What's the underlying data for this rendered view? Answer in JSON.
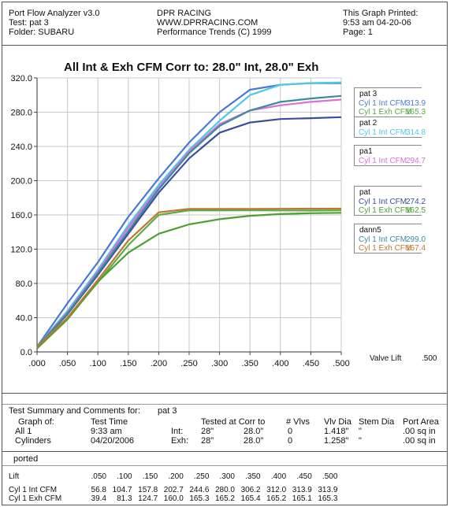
{
  "header": {
    "left": [
      "Port Flow Analyzer v3.0",
      "Test:  pat  3",
      "Folder:  SUBARU"
    ],
    "middle": [
      "DPR RACING",
      "WWW.DPRRACING.COM",
      "Performance Trends (C) 1999"
    ],
    "right": [
      "This Graph Printed:",
      "9:53 am 04-20-06",
      "Page: 1"
    ]
  },
  "chart_data": {
    "type": "line",
    "title": "All Int & Exh CFM    Corr to: 28.0\" Int, 28.0\" Exh",
    "xlabel": "Valve Lift",
    "ylabel": "",
    "xlim": [
      0,
      0.5
    ],
    "ylim": [
      0,
      320
    ],
    "grid": true,
    "x_tick_labels": [
      ".000",
      ".050",
      ".100",
      ".150",
      ".200",
      ".250",
      ".300",
      ".350",
      ".400",
      ".450",
      ".500"
    ],
    "y_tick_labels": [
      "0.0",
      "40.0",
      "80.0",
      "120.0",
      "160.0",
      "200.0",
      "240.0",
      "280.0",
      "320.0"
    ],
    "y_ticks": [
      0,
      40,
      80,
      120,
      160,
      200,
      240,
      280,
      320
    ],
    "x": [
      0.0,
      0.05,
      0.1,
      0.15,
      0.2,
      0.25,
      0.3,
      0.35,
      0.4,
      0.45,
      0.5
    ],
    "x_end_value": ".500",
    "series": [
      {
        "group": "pat  3",
        "name": "Cyl 1 Int CFM",
        "color": "#4a78d8",
        "end_value": "313.9",
        "values": [
          6,
          56.8,
          104.7,
          157.8,
          202.7,
          244.6,
          280.0,
          306.2,
          312.0,
          313.9,
          313.9
        ]
      },
      {
        "group": "pat  3",
        "name": "Cyl 1 Exh CFM",
        "color": "#5aaa46",
        "end_value": "165.3",
        "values": [
          5,
          39.4,
          81.3,
          124.7,
          160.0,
          165.3,
          165.2,
          165.4,
          165.2,
          165.1,
          165.3
        ]
      },
      {
        "group": "pat  2",
        "name": "Cyl 1 Int CFM",
        "color": "#4ec8e8",
        "end_value": "314.8",
        "values": [
          6,
          48,
          96,
          148,
          195,
          236,
          270,
          300,
          312,
          314,
          314.8
        ]
      },
      {
        "group": "pa1",
        "name": "Cyl 1 Int CFM",
        "color": "#d870d8",
        "end_value": "294.7",
        "values": [
          6,
          46,
          94,
          145,
          192,
          234,
          266,
          282,
          288,
          292,
          294.7
        ]
      },
      {
        "group": "pat",
        "name": "Cyl 1 Int CFM",
        "color": "#3a4e9a",
        "end_value": "274.2",
        "values": [
          6,
          44,
          90,
          138,
          186,
          226,
          256,
          268,
          272,
          273,
          274.2
        ]
      },
      {
        "group": "pat",
        "name": "Cyl 1 Exh CFM",
        "color": "#4aa030",
        "end_value": "162.5",
        "values": [
          4,
          38,
          82,
          116,
          138,
          149,
          155,
          159,
          161,
          162,
          162.5
        ]
      },
      {
        "group": "dann5",
        "name": "Cyl 1 Int CFM",
        "color": "#3a8aa0",
        "end_value": "299.0",
        "values": [
          6,
          45,
          92,
          141,
          190,
          232,
          264,
          282,
          292,
          296,
          299.0
        ]
      },
      {
        "group": "dann5",
        "name": "Cyl 1 Exh CFM",
        "color": "#c07830",
        "end_value": "167.4",
        "values": [
          6,
          40,
          84,
          130,
          163,
          167,
          167,
          167,
          167.2,
          167.3,
          167.4
        ]
      }
    ]
  },
  "legend_groups": [
    {
      "name": "pat  3",
      "rows": [
        {
          "label": "Cyl 1 Int CFM",
          "value": "313.9",
          "color": "#4a78d8"
        },
        {
          "label": "Cyl 1 Exh CFM",
          "value": "165.3",
          "color": "#5aaa46"
        }
      ]
    },
    {
      "name": "pat  2",
      "rows": [
        {
          "label": "Cyl 1 Int CFM",
          "value": "314.8",
          "color": "#4ec8e8"
        }
      ]
    },
    {
      "name": "pa1",
      "rows": [
        {
          "label": "Cyl 1 Int CFM",
          "value": "294.7",
          "color": "#d870d8"
        }
      ]
    },
    {
      "name": "pat",
      "rows": [
        {
          "label": "Cyl 1 Int CFM",
          "value": "274.2",
          "color": "#3a4e9a"
        },
        {
          "label": "Cyl 1 Exh CFM",
          "value": "162.5",
          "color": "#4aa030"
        }
      ]
    },
    {
      "name": "dann5",
      "rows": [
        {
          "label": "Cyl 1 Int CFM",
          "value": "299.0",
          "color": "#3a8aa0"
        },
        {
          "label": "Cyl 1 Exh CFM",
          "value": "167.4",
          "color": "#c07830"
        }
      ]
    }
  ],
  "summary": {
    "heading": "Test Summary and Comments for:",
    "test_name": "pat  3",
    "graph_of_label": "Graph of:",
    "graph_of_value": "All 1",
    "cylinders_label": "Cylinders",
    "test_time_label": "Test Time",
    "test_time": "9:33 am",
    "test_date": "04/20/2006",
    "tested_label": "Tested at  Corr to",
    "vlvs_label": "# Vlvs",
    "vlv_dia_label": "Vlv Dia",
    "stem_dia_label": "Stem Dia",
    "port_area_label": "Port Area",
    "int": {
      "label": "Int:",
      "tested": "28\"",
      "corr": "28.0\"",
      "vlvs": "0",
      "vlv_dia": "1.418\"",
      "stem": "\"",
      "port_area": ".00 sq in"
    },
    "exh": {
      "label": "Exh:",
      "tested": "28\"",
      "corr": "28.0\"",
      "vlvs": "0",
      "vlv_dia": "1.258\"",
      "stem": "\"",
      "port_area": ".00 sq in"
    },
    "comment": "ported"
  },
  "table": {
    "lift_label": "Lift",
    "lift": [
      ".050",
      ".100",
      ".150",
      ".200",
      ".250",
      ".300",
      ".350",
      ".400",
      ".450",
      ".500"
    ],
    "int_label": "Cyl 1 Int CFM",
    "int": [
      "56.8",
      "104.7",
      "157.8",
      "202.7",
      "244.6",
      "280.0",
      "306.2",
      "312.0",
      "313.9",
      "313.9"
    ],
    "exh_label": "Cyl 1 Exh CFM",
    "exh": [
      "39.4",
      "81.3",
      "124.7",
      "160.0",
      "165.3",
      "165.2",
      "165.4",
      "165.2",
      "165.1",
      "165.3"
    ]
  }
}
